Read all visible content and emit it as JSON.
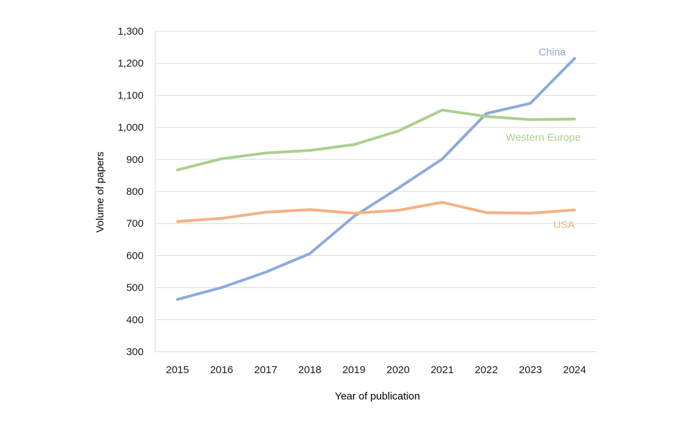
{
  "chart_data": {
    "type": "line",
    "title": "",
    "xlabel": "Year of publication",
    "ylabel": "Volume of papers",
    "x": [
      "2015",
      "2016",
      "2017",
      "2018",
      "2019",
      "2020",
      "2021",
      "2022",
      "2023",
      "2024"
    ],
    "ylim": [
      300,
      1300
    ],
    "yticks": [
      "300",
      "400",
      "500",
      "600",
      "700",
      "800",
      "900",
      "1,000",
      "1,100",
      "1,200",
      "1,300"
    ],
    "grid": true,
    "legend": "inline labels",
    "series": [
      {
        "name": "China",
        "color": "#8eaadb",
        "values": [
          463,
          500,
          548,
          606,
          722,
          810,
          901,
          1043,
          1075,
          1215
        ]
      },
      {
        "name": "Western Europe",
        "color": "#a9d18e",
        "values": [
          867,
          902,
          920,
          928,
          946,
          988,
          1054,
          1034,
          1024,
          1026
        ]
      },
      {
        "name": "USA",
        "color": "#f4b183",
        "values": [
          706,
          716,
          735,
          743,
          732,
          741,
          766,
          734,
          732,
          742
        ]
      }
    ]
  }
}
